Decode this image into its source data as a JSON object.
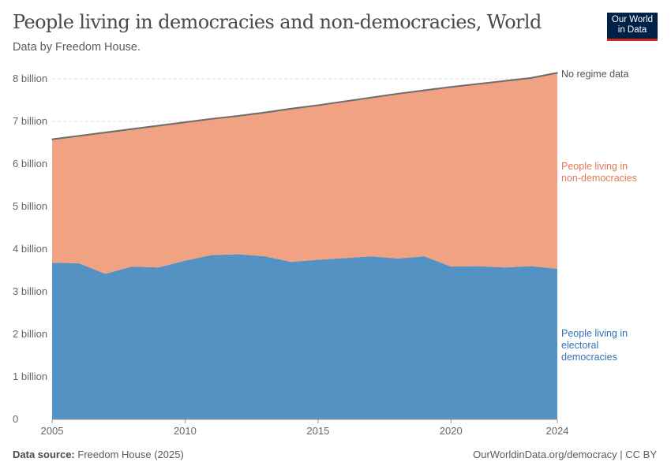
{
  "header": {
    "title": "People living in democracies and non-democracies, World",
    "subtitle": "Data by Freedom House.",
    "logo": "Our World in Data"
  },
  "footer": {
    "source_label": "Data source:",
    "source": "Freedom House (2025)",
    "link": "OurWorldinData.org/democracy | CC BY"
  },
  "chart_data": {
    "type": "area",
    "stacked": true,
    "x": [
      2005,
      2006,
      2007,
      2008,
      2009,
      2010,
      2011,
      2012,
      2013,
      2014,
      2015,
      2016,
      2017,
      2018,
      2019,
      2020,
      2021,
      2022,
      2023,
      2024
    ],
    "x_ticks": [
      "2005",
      "2010",
      "2015",
      "2020",
      "2024"
    ],
    "y_ticks": [
      "0",
      "1 billion",
      "2 billion",
      "3 billion",
      "4 billion",
      "5 billion",
      "6 billion",
      "7 billion",
      "8 billion"
    ],
    "ylim": [
      0,
      8000000000
    ],
    "grid": "horizontal dashed",
    "series": [
      {
        "name": "People living in electoral democracies",
        "color": "#5592c4",
        "values": [
          3680000000.0,
          3670000000.0,
          3420000000.0,
          3590000000.0,
          3570000000.0,
          3730000000.0,
          3860000000.0,
          3880000000.0,
          3830000000.0,
          3700000000.0,
          3750000000.0,
          3790000000.0,
          3830000000.0,
          3780000000.0,
          3830000000.0,
          3590000000.0,
          3600000000.0,
          3570000000.0,
          3600000000.0,
          3540000000.0
        ]
      },
      {
        "name": "People living in non-democracies",
        "color": "#f0a282",
        "values": [
          2890000000.0,
          2980000000.0,
          3310000000.0,
          3220000000.0,
          3320000000.0,
          3240000000.0,
          3190000000.0,
          3240000000.0,
          3370000000.0,
          3590000000.0,
          3620000000.0,
          3670000000.0,
          3720000000.0,
          3860000000.0,
          3890000000.0,
          4210000000.0,
          4270000000.0,
          4370000000.0,
          4410000000.0,
          4590000000.0
        ]
      },
      {
        "name": "No regime data",
        "color": "#6e6e6e",
        "values": [
          20000000.0,
          20000000.0,
          20000000.0,
          20000000.0,
          20000000.0,
          20000000.0,
          20000000.0,
          20000000.0,
          20000000.0,
          20000000.0,
          20000000.0,
          20000000.0,
          20000000.0,
          20000000.0,
          20000000.0,
          20000000.0,
          20000000.0,
          20000000.0,
          20000000.0,
          20000000.0
        ]
      }
    ],
    "legend_placement": "right, inline labels"
  }
}
